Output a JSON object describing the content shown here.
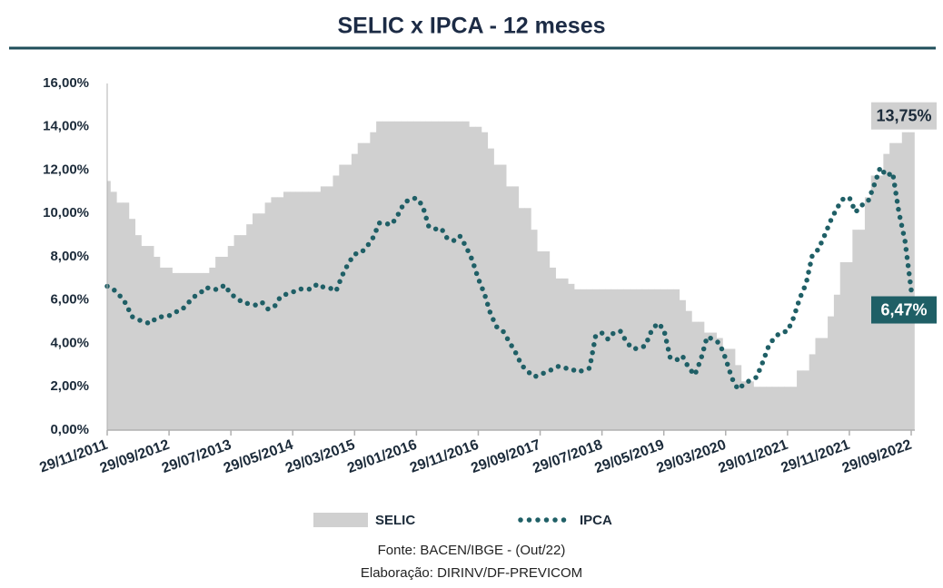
{
  "chart_data": {
    "type": "step-area-line",
    "title": "SELIC x IPCA - 12 meses",
    "footnotes": [
      "Fonte: BACEN/IBGE - (Out/22)",
      "Elaboração: DIRINV/DF-PREVICOM"
    ],
    "categories": [
      "29/11/2011",
      null,
      null,
      null,
      null,
      null,
      null,
      null,
      null,
      null,
      "29/09/2012",
      null,
      null,
      null,
      null,
      null,
      null,
      null,
      null,
      null,
      "29/07/2013",
      null,
      null,
      null,
      null,
      null,
      null,
      null,
      null,
      null,
      "29/05/2014",
      null,
      null,
      null,
      null,
      null,
      null,
      null,
      null,
      null,
      "29/03/2015",
      null,
      null,
      null,
      null,
      null,
      null,
      null,
      null,
      null,
      "29/01/2016",
      null,
      null,
      null,
      null,
      null,
      null,
      null,
      null,
      null,
      "29/11/2016",
      null,
      null,
      null,
      null,
      null,
      null,
      null,
      null,
      null,
      "29/09/2017",
      null,
      null,
      null,
      null,
      null,
      null,
      null,
      null,
      null,
      "29/07/2018",
      null,
      null,
      null,
      null,
      null,
      null,
      null,
      null,
      null,
      "29/05/2019",
      null,
      null,
      null,
      null,
      null,
      null,
      null,
      null,
      null,
      "29/03/2020",
      null,
      null,
      null,
      null,
      null,
      null,
      null,
      null,
      null,
      "29/01/2021",
      null,
      null,
      null,
      null,
      null,
      null,
      null,
      null,
      null,
      "29/11/2021",
      null,
      null,
      null,
      null,
      null,
      null,
      null,
      null,
      null,
      "29/09/2022"
    ],
    "ylim": [
      0,
      16
    ],
    "yticks": [
      {
        "value": 0,
        "label": "0,00%"
      },
      {
        "value": 2,
        "label": "2,00%"
      },
      {
        "value": 4,
        "label": "4,00%"
      },
      {
        "value": 6,
        "label": "6,00%"
      },
      {
        "value": 8,
        "label": "8,00%"
      },
      {
        "value": 10,
        "label": "10,00%"
      },
      {
        "value": 12,
        "label": "12,00%"
      },
      {
        "value": 14,
        "label": "14,00%"
      },
      {
        "value": 16,
        "label": "16,00%"
      }
    ],
    "series": [
      {
        "name": "SELIC",
        "kind": "step-area",
        "color": "#d0d0d0",
        "values": [
          11.5,
          11.0,
          10.5,
          10.5,
          9.75,
          9.0,
          8.5,
          8.5,
          8.0,
          7.5,
          7.5,
          7.25,
          7.25,
          7.25,
          7.25,
          7.25,
          7.25,
          7.5,
          8.0,
          8.0,
          8.5,
          9.0,
          9.0,
          9.5,
          10.0,
          10.0,
          10.5,
          10.75,
          10.75,
          11.0,
          11.0,
          11.0,
          11.0,
          11.0,
          11.0,
          11.25,
          11.25,
          11.75,
          12.25,
          12.25,
          12.75,
          13.25,
          13.25,
          13.75,
          14.25,
          14.25,
          14.25,
          14.25,
          14.25,
          14.25,
          14.25,
          14.25,
          14.25,
          14.25,
          14.25,
          14.25,
          14.25,
          14.25,
          14.25,
          14.0,
          14.0,
          13.75,
          13.0,
          12.25,
          12.25,
          11.25,
          11.25,
          10.25,
          10.25,
          9.25,
          8.25,
          8.25,
          7.5,
          7.0,
          7.0,
          6.75,
          6.5,
          6.5,
          6.5,
          6.5,
          6.5,
          6.5,
          6.5,
          6.5,
          6.5,
          6.5,
          6.5,
          6.5,
          6.5,
          6.5,
          6.5,
          6.5,
          6.5,
          6.0,
          5.5,
          5.0,
          5.0,
          4.5,
          4.5,
          4.25,
          3.75,
          3.75,
          3.0,
          2.25,
          2.25,
          2.0,
          2.0,
          2.0,
          2.0,
          2.0,
          2.0,
          2.0,
          2.75,
          2.75,
          3.5,
          4.25,
          4.25,
          5.25,
          6.25,
          7.75,
          7.75,
          9.25,
          9.25,
          10.75,
          11.75,
          11.75,
          12.75,
          13.25,
          13.25,
          13.75,
          13.75
        ],
        "value_labels": [
          null,
          null,
          null,
          null,
          null,
          null,
          null,
          null,
          null,
          null,
          null,
          null,
          null,
          null,
          null,
          null,
          null,
          null,
          null,
          null,
          null,
          null,
          null,
          null,
          null,
          null,
          null,
          null,
          null,
          null,
          null,
          null,
          null,
          null,
          null,
          null,
          null,
          null,
          null,
          null,
          null,
          null,
          null,
          null,
          null,
          null,
          null,
          null,
          null,
          null,
          null,
          null,
          null,
          null,
          null,
          null,
          null,
          null,
          null,
          null,
          null,
          null,
          null,
          null,
          null,
          null,
          null,
          null,
          null,
          null,
          null,
          null,
          null,
          null,
          null,
          null,
          null,
          null,
          null,
          null,
          null,
          null,
          null,
          null,
          null,
          null,
          null,
          null,
          null,
          null,
          null,
          null,
          null,
          null,
          null,
          null,
          null,
          null,
          null,
          null,
          null,
          null,
          null,
          null,
          null,
          null,
          null,
          null,
          null,
          null,
          null,
          null,
          null,
          null,
          null,
          null,
          null,
          null,
          null,
          null,
          null,
          null,
          null,
          null,
          null,
          null,
          null,
          null,
          null,
          null,
          "13,75%"
        ]
      },
      {
        "name": "IPCA",
        "kind": "dotted-line",
        "color": "#1f5f66",
        "values": [
          6.64,
          6.5,
          6.22,
          5.85,
          5.24,
          5.1,
          4.99,
          4.92,
          5.2,
          5.24,
          5.28,
          5.45,
          5.53,
          5.84,
          6.15,
          6.31,
          6.59,
          6.49,
          6.5,
          6.7,
          6.27,
          6.09,
          5.86,
          5.84,
          5.77,
          5.91,
          5.59,
          5.68,
          6.15,
          6.28,
          6.37,
          6.52,
          6.5,
          6.51,
          6.75,
          6.59,
          6.56,
          6.41,
          7.14,
          7.7,
          8.13,
          8.17,
          8.47,
          8.89,
          9.56,
          9.53,
          9.49,
          9.93,
          10.48,
          10.67,
          10.71,
          10.36,
          9.39,
          9.28,
          9.32,
          8.84,
          8.74,
          8.97,
          8.48,
          7.87,
          6.99,
          6.29,
          5.35,
          4.76,
          4.57,
          4.08,
          3.6,
          3.0,
          2.71,
          2.46,
          2.54,
          2.7,
          2.8,
          2.95,
          2.86,
          2.84,
          2.68,
          2.76,
          2.86,
          4.39,
          4.48,
          4.19,
          4.53,
          4.56,
          4.05,
          3.75,
          3.78,
          3.89,
          4.58,
          4.94,
          4.66,
          3.37,
          3.22,
          3.43,
          2.89,
          2.54,
          3.27,
          4.31,
          4.19,
          4.01,
          3.3,
          2.4,
          1.88,
          2.13,
          2.31,
          2.44,
          3.14,
          3.92,
          4.31,
          4.52,
          4.56,
          5.2,
          6.1,
          6.76,
          8.06,
          8.35,
          8.99,
          9.68,
          10.25,
          10.67,
          10.74,
          10.06,
          10.38,
          10.54,
          11.3,
          12.13,
          11.73,
          11.89,
          10.07,
          8.73,
          6.47
        ],
        "value_labels": [
          null,
          null,
          null,
          null,
          null,
          null,
          null,
          null,
          null,
          null,
          null,
          null,
          null,
          null,
          null,
          null,
          null,
          null,
          null,
          null,
          null,
          null,
          null,
          null,
          null,
          null,
          null,
          null,
          null,
          null,
          null,
          null,
          null,
          null,
          null,
          null,
          null,
          null,
          null,
          null,
          null,
          null,
          null,
          null,
          null,
          null,
          null,
          null,
          null,
          null,
          null,
          null,
          null,
          null,
          null,
          null,
          null,
          null,
          null,
          null,
          null,
          null,
          null,
          null,
          null,
          null,
          null,
          null,
          null,
          null,
          null,
          null,
          null,
          null,
          null,
          null,
          null,
          null,
          null,
          null,
          null,
          null,
          null,
          null,
          null,
          null,
          null,
          null,
          null,
          null,
          null,
          null,
          null,
          null,
          null,
          null,
          null,
          null,
          null,
          null,
          null,
          null,
          null,
          null,
          null,
          null,
          null,
          null,
          null,
          null,
          null,
          null,
          null,
          null,
          null,
          null,
          null,
          null,
          null,
          null,
          null,
          null,
          null,
          null,
          null,
          null,
          null,
          null,
          null,
          null,
          "6,47%"
        ]
      }
    ]
  }
}
